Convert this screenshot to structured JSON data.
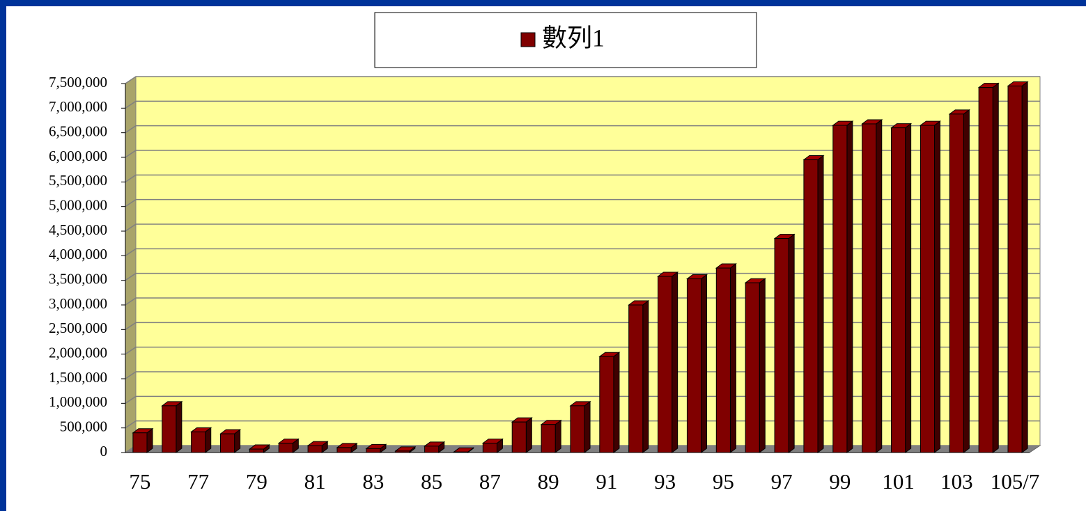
{
  "chart_data": {
    "type": "bar",
    "legend_position": "top",
    "categories": [
      "75",
      null,
      "77",
      null,
      "79",
      null,
      "81",
      null,
      "83",
      null,
      "85",
      null,
      "87",
      null,
      "89",
      null,
      "91",
      null,
      "93",
      null,
      "95",
      null,
      "97",
      null,
      "99",
      null,
      "101",
      null,
      "103",
      null,
      "105/7"
    ],
    "series": [
      {
        "name": "數列1",
        "color": "#800000",
        "values": [
          400000,
          950000,
          420000,
          380000,
          70000,
          190000,
          140000,
          100000,
          80000,
          30000,
          130000,
          10000,
          190000,
          620000,
          570000,
          950000,
          1950000,
          3000000,
          3580000,
          3530000,
          3750000,
          3450000,
          4350000,
          5950000,
          6650000,
          6680000,
          6600000,
          6650000,
          6880000,
          7420000,
          7450000
        ]
      }
    ],
    "ylim": [
      0,
      7500000
    ],
    "yticks": [
      0,
      {
        "value": 500000,
        "label": "500,000"
      },
      {
        "value": 1000000,
        "label": "1,000,000"
      },
      {
        "value": 1500000,
        "label": "1,500,000"
      },
      {
        "value": 2000000,
        "label": "2,000,000"
      },
      {
        "value": 2500000,
        "label": "2,500,000"
      },
      {
        "value": 3000000,
        "label": "3,000,000"
      },
      {
        "value": 3500000,
        "label": "3,500,000"
      },
      {
        "value": 4000000,
        "label": "4,000,000"
      },
      {
        "value": 4500000,
        "label": "4,500,000"
      },
      {
        "value": 5000000,
        "label": "5,000,000"
      },
      {
        "value": 5500000,
        "label": "5,500,000"
      },
      {
        "value": 6000000,
        "label": "6,000,000"
      },
      {
        "value": 6500000,
        "label": "6,500,000"
      },
      {
        "value": 7000000,
        "label": "7,000,000"
      },
      {
        "value": 7500000,
        "label": "7,500,000"
      }
    ],
    "grid": true
  }
}
